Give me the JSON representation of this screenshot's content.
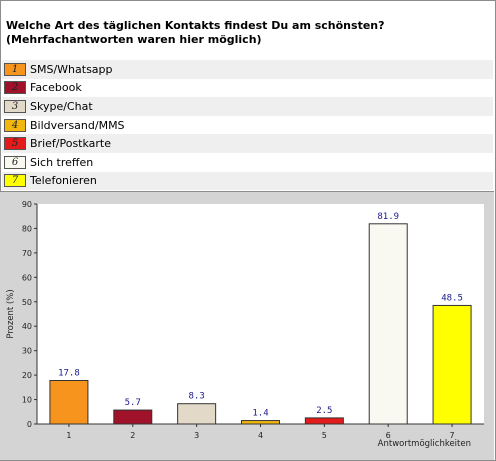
{
  "title": "Welche Art des täglichen Kontakts findest Du am schönsten? (Mehrfachantworten waren hier möglich)",
  "legend": [
    {
      "num": "1",
      "label": "SMS/Whatsapp",
      "color": "#f7941d"
    },
    {
      "num": "2",
      "label": "Facebook",
      "color": "#a0122a"
    },
    {
      "num": "3",
      "label": "Skype/Chat",
      "color": "#e2d9c9"
    },
    {
      "num": "4",
      "label": "Bildversand/MMS",
      "color": "#f2b70f"
    },
    {
      "num": "5",
      "label": "Brief/Postkarte",
      "color": "#e31b1b"
    },
    {
      "num": "6",
      "label": "Sich treffen",
      "color": "#faf9f1"
    },
    {
      "num": "7",
      "label": "Telefonieren",
      "color": "#ffff00"
    }
  ],
  "chart_data": {
    "type": "bar",
    "categories": [
      "1",
      "2",
      "3",
      "4",
      "5",
      "6",
      "7"
    ],
    "values": [
      17.8,
      5.7,
      8.3,
      1.4,
      2.5,
      81.9,
      48.5
    ],
    "value_labels": [
      "17.8",
      "5.7",
      "8.3",
      "1.4",
      "2.5",
      "81.9",
      "48.5"
    ],
    "colors": [
      "#f7941d",
      "#a0122a",
      "#e2d9c9",
      "#f2b70f",
      "#e31b1b",
      "#faf9f1",
      "#ffff00"
    ],
    "ylabel": "Prozent (%)",
    "xlabel": "Antwortmöglichkeiten",
    "ylim": [
      0,
      90
    ],
    "yticks": [
      "0",
      "10",
      "20",
      "30",
      "40",
      "50",
      "60",
      "70",
      "80",
      "90"
    ],
    "grid": false
  }
}
